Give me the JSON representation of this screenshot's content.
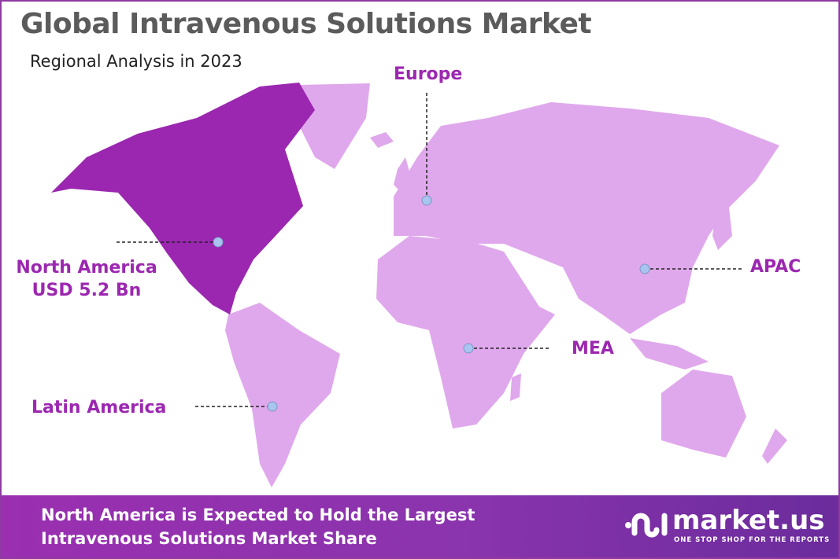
{
  "title": "Global Intravenous Solutions Market",
  "subtitle": "Regional Analysis in 2023",
  "colors": {
    "highlight_region": "#9b27b0",
    "other_regions": "#e0a8ec",
    "label": "#9c27b0",
    "marker": "#a9c4ee"
  },
  "regions": [
    {
      "name": "North America",
      "value": "USD 5.2 Bn",
      "highlighted": true
    },
    {
      "name": "Europe",
      "highlighted": false
    },
    {
      "name": "APAC",
      "highlighted": false
    },
    {
      "name": "MEA",
      "highlighted": false
    },
    {
      "name": "Latin America",
      "highlighted": false
    }
  ],
  "footer": {
    "line1": "North America is Expected to Hold the Largest",
    "line2": "Intravenous Solutions Market Share",
    "logo_name": "market.us",
    "logo_tagline": "ONE STOP SHOP FOR THE REPORTS"
  }
}
